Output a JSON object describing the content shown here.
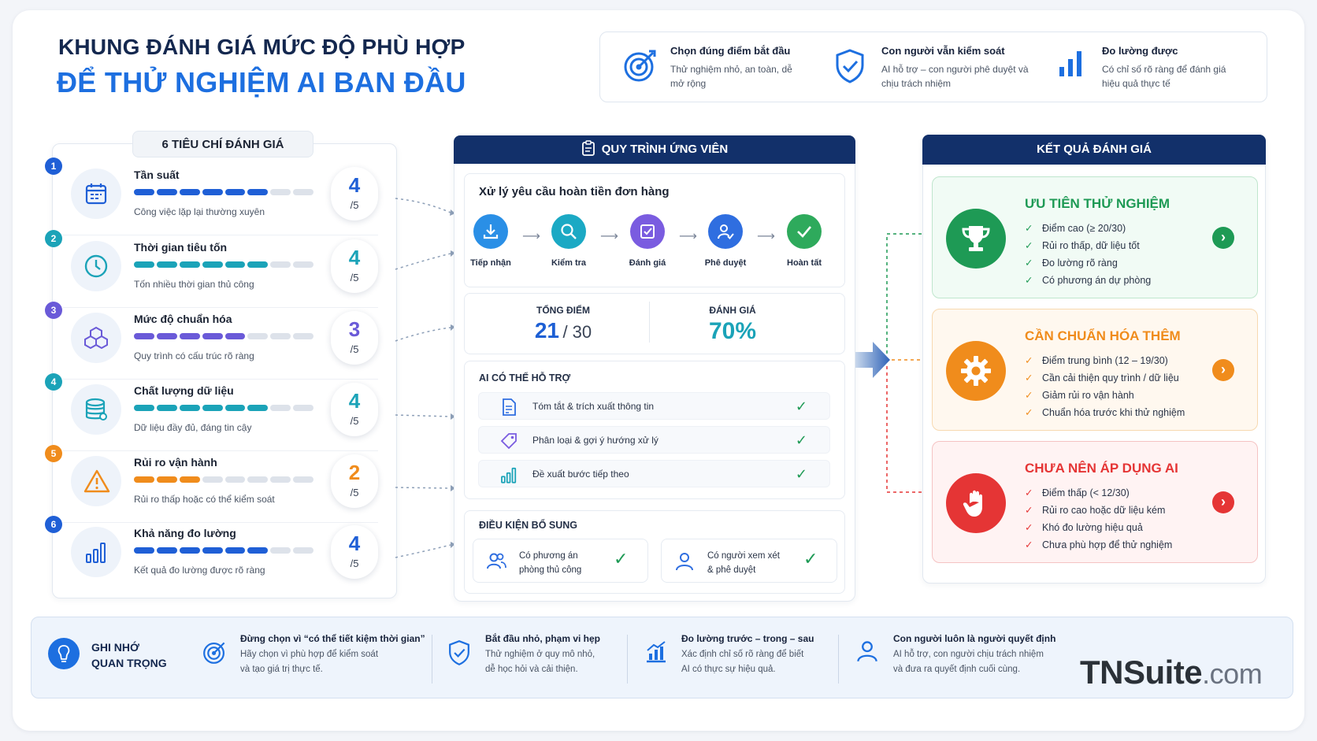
{
  "header": {
    "title_line1": "KHUNG ĐÁNH GIÁ MỨC ĐỘ PHÙ HỢP",
    "title_line2": "ĐỂ THỬ NGHIỆM AI BAN ĐẦU"
  },
  "highlights": [
    {
      "icon": "target-icon",
      "title": "Chọn đúng điểm bắt đầu",
      "desc": "Thử nghiệm nhỏ, an toàn, dễ mở rộng"
    },
    {
      "icon": "shield-check-icon",
      "title": "Con người vẫn kiểm soát",
      "desc": "AI hỗ trợ – con người phê duyệt và chịu trách nhiệm"
    },
    {
      "icon": "bar-chart-icon",
      "title": "Đo lường được",
      "desc": "Có chỉ số rõ ràng để đánh giá hiệu quả thực tế"
    }
  ],
  "criteria_panel": {
    "heading": "6 TIÊU CHÍ ĐÁNH GIÁ",
    "score_suffix": "/5",
    "items": [
      {
        "num": "1",
        "icon": "calendar-icon",
        "name": "Tần suất",
        "desc": "Công việc lặp lại thường xuyên",
        "score": "4",
        "value": 4,
        "color": "#1f5fd6"
      },
      {
        "num": "2",
        "icon": "clock-icon",
        "name": "Thời gian tiêu tốn",
        "desc": "Tốn nhiều thời gian thủ công",
        "score": "4",
        "value": 4,
        "color": "#1ba3b8"
      },
      {
        "num": "3",
        "icon": "cubes-icon",
        "name": "Mức độ chuẩn hóa",
        "desc": "Quy trình có cấu trúc rõ ràng",
        "score": "3",
        "value": 3,
        "color": "#6a5ad8"
      },
      {
        "num": "4",
        "icon": "database-icon",
        "name": "Chất lượng dữ liệu",
        "desc": "Dữ liệu đầy đủ, đáng tin cậy",
        "score": "4",
        "value": 4,
        "color": "#1ba3b8"
      },
      {
        "num": "5",
        "icon": "warning-icon",
        "name": "Rủi ro vận hành",
        "desc": "Rủi ro thấp hoặc có thể kiểm soát",
        "score": "2",
        "value": 2,
        "color": "#f08c1c"
      },
      {
        "num": "6",
        "icon": "bar-chart-icon",
        "name": "Khả năng đo lường",
        "desc": "Kết quả đo lường được rõ ràng",
        "score": "4",
        "value": 4,
        "color": "#1f5fd6"
      }
    ]
  },
  "process_panel": {
    "heading": "QUY TRÌNH ỨNG VIÊN",
    "task": "Xử lý yêu cầu hoàn tiền đơn hàng",
    "steps": [
      {
        "label": "Tiếp nhận",
        "icon": "download-icon",
        "color": "#2a8fe6"
      },
      {
        "label": "Kiểm tra",
        "icon": "magnifier-icon",
        "color": "#1ba9c4"
      },
      {
        "label": "Đánh giá",
        "icon": "checklist-icon",
        "color": "#7a5ce0"
      },
      {
        "label": "Phê duyệt",
        "icon": "user-check-icon",
        "color": "#2f6ee0"
      },
      {
        "label": "Hoàn tất",
        "icon": "check-icon",
        "color": "#2eaa5c"
      }
    ],
    "total_label": "TỔNG ĐIỂM",
    "total_score": "21",
    "total_max": "/ 30",
    "rating_label": "ĐÁNH GIÁ",
    "rating_value": "70%",
    "ai_heading": "AI CÓ THỂ HỖ TRỢ",
    "ai_items": [
      {
        "icon": "document-icon",
        "text": "Tóm tắt & trích xuất thông tin"
      },
      {
        "icon": "tag-icon",
        "text": "Phân loại & gợi ý hướng xử lý"
      },
      {
        "icon": "bar-chart-icon",
        "text": "Đề xuất bước tiếp theo"
      }
    ],
    "conditions_heading": "ĐIỀU KIỆN BỔ SUNG",
    "conditions": [
      {
        "icon": "users-icon",
        "line1": "Có phương án",
        "line2": "phòng thủ công"
      },
      {
        "icon": "user-icon",
        "line1": "Có người xem xét",
        "line2": "& phê duyệt"
      }
    ]
  },
  "results_panel": {
    "heading": "KẾT QUẢ ĐÁNH GIÁ",
    "results": [
      {
        "icon": "trophy-icon",
        "title": "ƯU TIÊN THỬ NGHIỆM",
        "color": "#1e9a55",
        "bg": "#f1fbf5",
        "border": "#bfe6cd",
        "mark": "✓",
        "points": [
          "Điểm cao (≥ 20/30)",
          "Rủi ro thấp, dữ liệu tốt",
          "Đo lường rõ ràng",
          "Có phương án dự phòng"
        ]
      },
      {
        "icon": "gear-icon",
        "title": "CẦN CHUẨN HÓA THÊM",
        "color": "#f08c1c",
        "bg": "#fff8ef",
        "border": "#f7d9b0",
        "mark": "✓",
        "points": [
          "Điểm trung bình (12 – 19/30)",
          "Cần cải thiện quy trình / dữ liệu",
          "Giảm rủi ro vận hành",
          "Chuẩn hóa trước khi thử nghiệm"
        ]
      },
      {
        "icon": "stop-hand-icon",
        "title": "CHƯA NÊN ÁP DỤNG AI",
        "color": "#e53535",
        "bg": "#fff3f3",
        "border": "#f5c3c3",
        "mark": "✓",
        "points": [
          "Điểm thấp (< 12/30)",
          "Rủi ro cao hoặc dữ liệu kém",
          "Khó đo lường hiệu quả",
          "Chưa phù hợp để thử nghiệm"
        ]
      }
    ]
  },
  "reminders": {
    "title_line1": "GHI NHỚ",
    "title_line2": "QUAN TRỌNG",
    "items": [
      {
        "icon": "target-icon",
        "title": "Đừng chọn vì “có thể tiết kiệm thời gian”",
        "line1": "Hãy chọn vì phù hợp để kiểm soát",
        "line2": "và tạo giá trị thực tế."
      },
      {
        "icon": "shield-check-icon",
        "title": "Bắt đầu nhỏ, phạm vi hẹp",
        "line1": "Thử nghiệm ở quy mô nhỏ,",
        "line2": "dễ học hỏi và cải thiện."
      },
      {
        "icon": "growth-chart-icon",
        "title": "Đo lường trước – trong – sau",
        "line1": "Xác định chỉ số rõ ràng để biết",
        "line2": "AI có thực sự hiệu quả."
      },
      {
        "icon": "user-icon",
        "title": "Con người luôn là người quyết định",
        "line1": "AI hỗ trợ, con người chịu trách nhiệm",
        "line2": "và đưa ra quyết định cuối cùng."
      }
    ]
  },
  "brand": {
    "name": "TNSuite",
    "suffix": ".com"
  }
}
